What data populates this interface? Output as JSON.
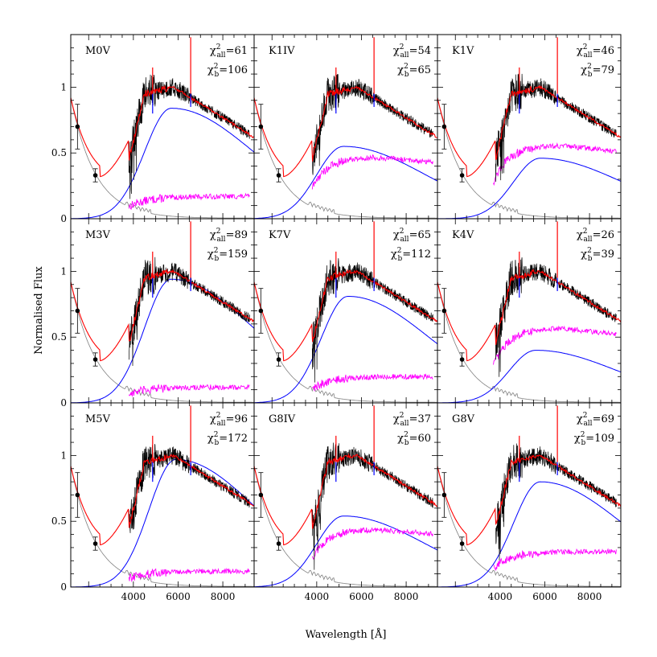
{
  "figure": {
    "ylabel": "Normalised Flux",
    "xlabel": "Wavelength [Å]"
  },
  "colors": {
    "observed": "#000000",
    "total_model": "#ff0000",
    "star": "#ff00ff",
    "disk": "#0000ff",
    "stream": "#808080",
    "uv_points": "#000000"
  },
  "chart_data": {
    "type": "line",
    "xlim": [
      1200,
      9400
    ],
    "ylim": [
      0,
      1.4
    ],
    "xticks": [
      4000,
      6000,
      8000
    ],
    "xtick_labels": [
      "4000",
      "6000",
      "8000"
    ],
    "yticks": [
      0,
      0.5,
      1
    ],
    "ytick_labels": [
      "0",
      "0.5",
      "1"
    ],
    "grid": false,
    "uv_points": [
      {
        "x": 1500,
        "y": 0.7,
        "err": 0.17
      },
      {
        "x": 2300,
        "y": 0.33,
        "err": 0.05
      }
    ],
    "panels": [
      {
        "label": "M0V",
        "chi_all": "61",
        "chi_b": "106",
        "disk_peak": 0.84,
        "disk_peak_x": 5700,
        "star_level": 0.17,
        "total_level": 1.0,
        "star_start": 3800
      },
      {
        "label": "K1IV",
        "chi_all": "54",
        "chi_b": "65",
        "disk_peak": 0.55,
        "disk_peak_x": 5200,
        "star_level": 0.47,
        "total_level": 1.0,
        "star_start": 3800
      },
      {
        "label": "K1V",
        "chi_all": "46",
        "chi_b": "79",
        "disk_peak": 0.46,
        "disk_peak_x": 5800,
        "star_level": 0.56,
        "total_level": 1.0,
        "star_start": 3700
      },
      {
        "label": "M3V",
        "chi_all": "89",
        "chi_b": "159",
        "disk_peak": 0.94,
        "disk_peak_x": 5700,
        "star_level": 0.12,
        "total_level": 1.0,
        "star_start": 3800
      },
      {
        "label": "K7V",
        "chi_all": "65",
        "chi_b": "112",
        "disk_peak": 0.81,
        "disk_peak_x": 5400,
        "star_level": 0.2,
        "total_level": 1.0,
        "star_start": 3800
      },
      {
        "label": "K4V",
        "chi_all": "26",
        "chi_b": "39",
        "disk_peak": 0.4,
        "disk_peak_x": 5600,
        "star_level": 0.57,
        "total_level": 1.0,
        "star_start": 3700
      },
      {
        "label": "M5V",
        "chi_all": "96",
        "chi_b": "172",
        "disk_peak": 0.97,
        "disk_peak_x": 5900,
        "star_level": 0.12,
        "total_level": 1.0,
        "star_start": 3800
      },
      {
        "label": "G8IV",
        "chi_all": "37",
        "chi_b": "60",
        "disk_peak": 0.54,
        "disk_peak_x": 5200,
        "star_level": 0.44,
        "total_level": 1.0,
        "star_start": 3800
      },
      {
        "label": "G8V",
        "chi_all": "69",
        "chi_b": "109",
        "disk_peak": 0.8,
        "disk_peak_x": 5800,
        "star_level": 0.27,
        "total_level": 1.0,
        "star_start": 3700
      }
    ]
  }
}
